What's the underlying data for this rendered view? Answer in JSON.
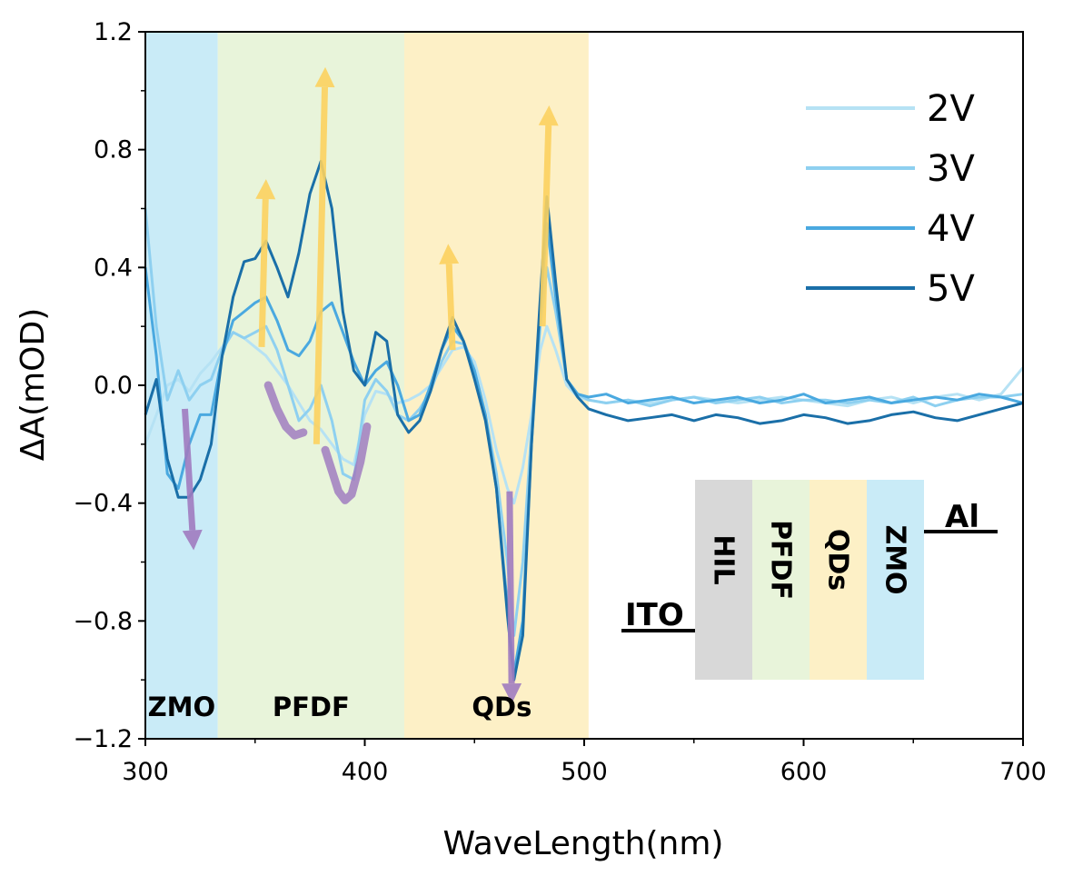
{
  "chart_data": {
    "type": "line",
    "title": "",
    "xlabel": "WaveLength(nm)",
    "ylabel": "ΔA(mOD)",
    "xlim": [
      300,
      700
    ],
    "ylim": [
      -1.2,
      1.2
    ],
    "x_ticks": [
      300,
      400,
      500,
      600,
      700
    ],
    "x_tick_labels": [
      "300",
      "400",
      "500",
      "600",
      "700"
    ],
    "y_ticks": [
      -1.2,
      -0.8,
      -0.4,
      0.0,
      0.4,
      0.8,
      1.2
    ],
    "y_tick_labels": [
      "−1.2",
      "−0.8",
      "−0.4",
      "0.0",
      "0.4",
      "0.8",
      "1.2"
    ],
    "legend_position": "top-right",
    "regions": [
      {
        "label": "ZMO",
        "x_start": 300,
        "x_end": 333,
        "color": "#c9ebf7"
      },
      {
        "label": "PFDF",
        "x_start": 333,
        "x_end": 418,
        "color": "#e8f4da"
      },
      {
        "label": "QDs",
        "x_start": 418,
        "x_end": 502,
        "color": "#fdf0c6"
      }
    ],
    "series": [
      {
        "name": "2V",
        "color": "#b6e2f4",
        "x": [
          300,
          305,
          310,
          315,
          320,
          325,
          330,
          335,
          340,
          345,
          350,
          355,
          360,
          365,
          370,
          375,
          380,
          385,
          390,
          395,
          400,
          405,
          410,
          415,
          420,
          425,
          430,
          435,
          440,
          445,
          450,
          455,
          460,
          465,
          468,
          472,
          476,
          480,
          483,
          487,
          492,
          497,
          502,
          510,
          520,
          530,
          540,
          550,
          560,
          570,
          580,
          590,
          600,
          610,
          620,
          630,
          640,
          650,
          660,
          670,
          680,
          690,
          700
        ],
        "y": [
          -0.2,
          -0.1,
          0.0,
          0.02,
          -0.02,
          0.04,
          0.08,
          0.13,
          0.18,
          0.16,
          0.13,
          0.1,
          0.05,
          0.0,
          -0.06,
          -0.12,
          -0.15,
          -0.2,
          -0.25,
          -0.27,
          -0.1,
          -0.02,
          -0.03,
          -0.06,
          -0.05,
          -0.03,
          0.0,
          0.06,
          0.12,
          0.13,
          0.08,
          -0.05,
          -0.22,
          -0.35,
          -0.4,
          -0.28,
          -0.1,
          0.12,
          0.2,
          0.12,
          0.0,
          -0.04,
          -0.05,
          -0.06,
          -0.05,
          -0.06,
          -0.05,
          -0.04,
          -0.05,
          -0.06,
          -0.05,
          -0.04,
          -0.05,
          -0.06,
          -0.07,
          -0.05,
          -0.04,
          -0.06,
          -0.04,
          -0.03,
          -0.05,
          -0.03,
          0.06
        ]
      },
      {
        "name": "3V",
        "color": "#8ed0f0",
        "x": [
          300,
          305,
          310,
          315,
          320,
          325,
          330,
          335,
          340,
          345,
          350,
          355,
          360,
          365,
          370,
          375,
          380,
          385,
          390,
          395,
          400,
          405,
          410,
          415,
          420,
          425,
          430,
          435,
          440,
          445,
          450,
          455,
          460,
          465,
          468,
          472,
          476,
          480,
          483,
          487,
          492,
          497,
          502,
          510,
          520,
          530,
          540,
          550,
          560,
          570,
          580,
          590,
          600,
          610,
          620,
          630,
          640,
          650,
          660,
          670,
          680,
          690,
          700
        ],
        "y": [
          0.6,
          0.2,
          -0.05,
          0.05,
          -0.05,
          0.0,
          0.02,
          0.12,
          0.18,
          0.16,
          0.18,
          0.2,
          0.12,
          0.0,
          -0.12,
          -0.08,
          0.0,
          -0.12,
          -0.3,
          -0.32,
          -0.05,
          0.02,
          -0.02,
          -0.1,
          -0.12,
          -0.08,
          -0.02,
          0.08,
          0.15,
          0.14,
          0.05,
          -0.1,
          -0.3,
          -0.6,
          -0.85,
          -0.6,
          -0.15,
          0.2,
          0.4,
          0.25,
          0.02,
          -0.03,
          -0.05,
          -0.06,
          -0.05,
          -0.07,
          -0.05,
          -0.04,
          -0.06,
          -0.05,
          -0.04,
          -0.06,
          -0.05,
          -0.05,
          -0.06,
          -0.05,
          -0.06,
          -0.04,
          -0.07,
          -0.05,
          -0.04,
          -0.04,
          -0.03
        ]
      },
      {
        "name": "4V",
        "color": "#4aa9e0",
        "x": [
          300,
          305,
          310,
          315,
          320,
          325,
          330,
          335,
          340,
          345,
          350,
          355,
          360,
          365,
          370,
          375,
          380,
          385,
          390,
          395,
          400,
          405,
          410,
          415,
          420,
          425,
          430,
          435,
          440,
          445,
          450,
          455,
          460,
          465,
          468,
          472,
          476,
          480,
          483,
          487,
          492,
          497,
          502,
          510,
          520,
          530,
          540,
          550,
          560,
          570,
          580,
          590,
          600,
          610,
          620,
          630,
          640,
          650,
          660,
          670,
          680,
          690,
          700
        ],
        "y": [
          0.4,
          0.1,
          -0.3,
          -0.35,
          -0.2,
          -0.1,
          -0.1,
          0.1,
          0.22,
          0.25,
          0.28,
          0.3,
          0.22,
          0.12,
          0.1,
          0.15,
          0.25,
          0.28,
          0.18,
          0.08,
          0.0,
          0.05,
          0.08,
          0.0,
          -0.12,
          -0.1,
          0.0,
          0.12,
          0.2,
          0.15,
          0.05,
          -0.1,
          -0.35,
          -0.75,
          -0.98,
          -0.8,
          -0.2,
          0.25,
          0.55,
          0.3,
          0.02,
          -0.03,
          -0.04,
          -0.03,
          -0.06,
          -0.05,
          -0.04,
          -0.06,
          -0.05,
          -0.04,
          -0.06,
          -0.05,
          -0.03,
          -0.06,
          -0.05,
          -0.04,
          -0.06,
          -0.05,
          -0.04,
          -0.05,
          -0.03,
          -0.04,
          -0.06
        ]
      },
      {
        "name": "5V",
        "color": "#1a6fa8",
        "x": [
          300,
          305,
          310,
          315,
          320,
          325,
          330,
          335,
          340,
          345,
          350,
          355,
          360,
          365,
          370,
          375,
          380,
          385,
          390,
          395,
          400,
          405,
          410,
          415,
          420,
          425,
          430,
          435,
          440,
          445,
          450,
          455,
          460,
          465,
          468,
          472,
          476,
          480,
          483,
          487,
          492,
          497,
          502,
          510,
          520,
          530,
          540,
          550,
          560,
          570,
          580,
          590,
          600,
          610,
          620,
          630,
          640,
          650,
          660,
          670,
          680,
          690,
          700
        ],
        "y": [
          -0.1,
          0.02,
          -0.25,
          -0.38,
          -0.38,
          -0.32,
          -0.2,
          0.1,
          0.3,
          0.42,
          0.43,
          0.49,
          0.4,
          0.3,
          0.45,
          0.65,
          0.76,
          0.6,
          0.25,
          0.05,
          0.0,
          0.18,
          0.15,
          -0.1,
          -0.16,
          -0.12,
          -0.02,
          0.12,
          0.23,
          0.15,
          0.02,
          -0.12,
          -0.35,
          -0.78,
          -1.0,
          -0.85,
          -0.2,
          0.3,
          0.64,
          0.35,
          0.02,
          -0.04,
          -0.08,
          -0.1,
          -0.12,
          -0.11,
          -0.1,
          -0.12,
          -0.1,
          -0.11,
          -0.13,
          -0.12,
          -0.1,
          -0.11,
          -0.13,
          -0.12,
          -0.1,
          -0.09,
          -0.11,
          -0.12,
          -0.1,
          -0.08,
          -0.06
        ]
      }
    ],
    "annotations": {
      "up_arrows": [
        {
          "x_start": 353,
          "y_start": 0.13,
          "x_end": 355,
          "y_end": 0.7
        },
        {
          "x_start": 378,
          "y_start": -0.2,
          "x_end": 382,
          "y_end": 1.08
        },
        {
          "x_start": 440,
          "y_start": 0.12,
          "x_end": 438,
          "y_end": 0.48
        },
        {
          "x_start": 481,
          "y_start": 0.2,
          "x_end": 484,
          "y_end": 0.95
        }
      ],
      "down_arrows": [
        {
          "x_start": 318,
          "y_start": -0.08,
          "x_end": 322,
          "y_end": -0.56
        },
        {
          "x_start": 466,
          "y_start": -0.36,
          "x_end": 467,
          "y_end": -1.08
        }
      ],
      "dip_highlights": [
        {
          "x": [
            356,
            360,
            364,
            368,
            372
          ],
          "y": [
            0.0,
            -0.08,
            -0.14,
            -0.17,
            -0.16
          ]
        },
        {
          "x": [
            382,
            385,
            388,
            391,
            394,
            398,
            401
          ],
          "y": [
            -0.22,
            -0.29,
            -0.36,
            -0.39,
            -0.37,
            -0.26,
            -0.14
          ]
        }
      ]
    },
    "inset": {
      "ito_label": "ITO",
      "al_label": "Al",
      "layers": [
        {
          "label": "HIL",
          "color": "#d8d8d8"
        },
        {
          "label": "PFDF",
          "color": "#e8f4da"
        },
        {
          "label": "QDs",
          "color": "#fdf0c6"
        },
        {
          "label": "ZMO",
          "color": "#c9ebf7"
        }
      ]
    }
  }
}
